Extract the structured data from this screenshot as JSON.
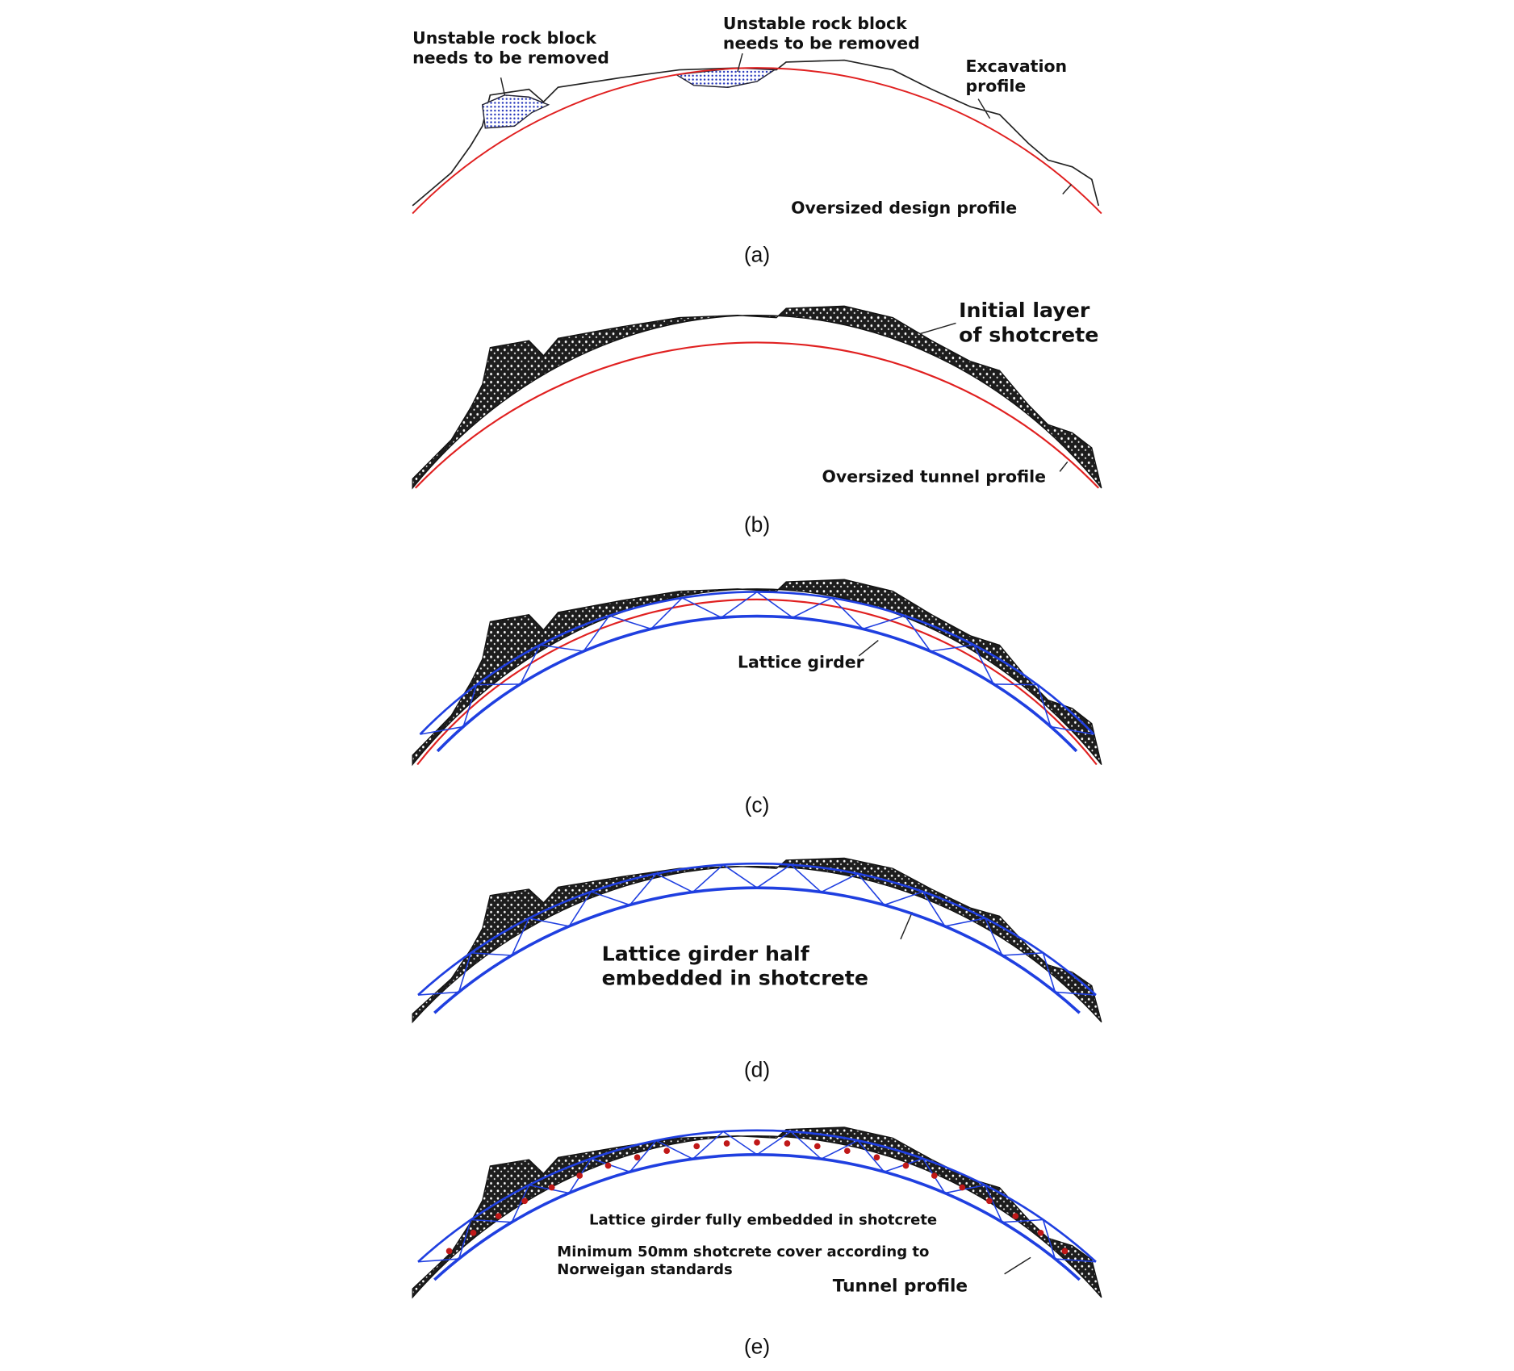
{
  "panels": [
    {
      "caption": "(a)",
      "labels": [
        [
          "Unstable rock block",
          "needs to be removed"
        ],
        [
          "Unstable rock block",
          "needs to be removed"
        ],
        [
          "Excavation",
          "profile"
        ],
        [
          "Oversized design profile"
        ]
      ]
    },
    {
      "caption": "(b)",
      "labels": [
        [
          "Initial layer",
          "of shotcrete"
        ],
        [
          "Oversized tunnel profile"
        ]
      ]
    },
    {
      "caption": "(c)",
      "labels": [
        [
          "Lattice girder"
        ]
      ]
    },
    {
      "caption": "(d)",
      "labels": [
        [
          "Lattice girder half",
          "embedded in shotcrete"
        ]
      ]
    },
    {
      "caption": "(e)",
      "labels": [
        [
          "Lattice girder fully embedded in shotcrete"
        ],
        [
          "Minimum 50mm shotcrete cover according to",
          "Norweigan standards"
        ],
        [
          "Tunnel profile"
        ]
      ]
    }
  ]
}
